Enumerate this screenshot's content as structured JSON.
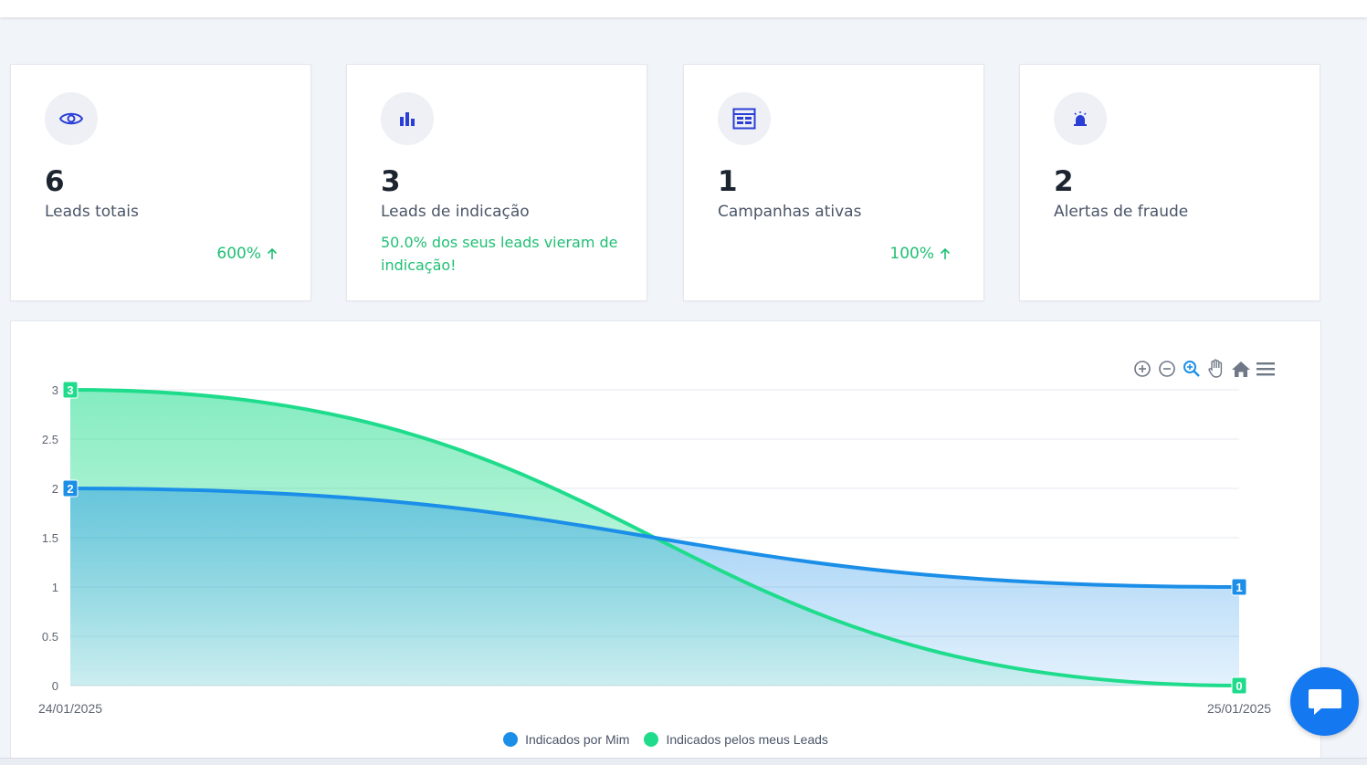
{
  "stats": [
    {
      "value": "6",
      "label": "Leads totais",
      "trend": "600%",
      "icon": "eye-icon"
    },
    {
      "value": "3",
      "label": "Leads de indicação",
      "note": "50.0% dos seus leads vieram de indicação!",
      "icon": "bar-chart-icon"
    },
    {
      "value": "1",
      "label": "Campanhas ativas",
      "trend": "100%",
      "icon": "table-icon"
    },
    {
      "value": "2",
      "label": "Alertas de fraude",
      "icon": "alarm-icon"
    }
  ],
  "colors": {
    "accent": "#2b3fd6",
    "positive": "#1fbf74",
    "series_blue": "#1b8fe8",
    "series_green": "#1fdc8c"
  },
  "toolbar": [
    "zoom-in-icon",
    "zoom-out-icon",
    "zoom-select-icon",
    "pan-icon",
    "home-icon",
    "menu-icon"
  ],
  "chart_data": {
    "type": "area",
    "x": [
      "24/01/2025",
      "25/01/2025"
    ],
    "series": [
      {
        "name": "Indicados por Mim",
        "values": [
          2,
          1
        ],
        "color": "#1b8fe8"
      },
      {
        "name": "Indicados pelos meus Leads",
        "values": [
          3,
          0
        ],
        "color": "#1fdc8c"
      }
    ],
    "yticks": [
      "0",
      "0.5",
      "1",
      "1.5",
      "2",
      "2.5",
      "3"
    ],
    "ylim": [
      0,
      3
    ],
    "grid": true,
    "legend": "bottom"
  }
}
